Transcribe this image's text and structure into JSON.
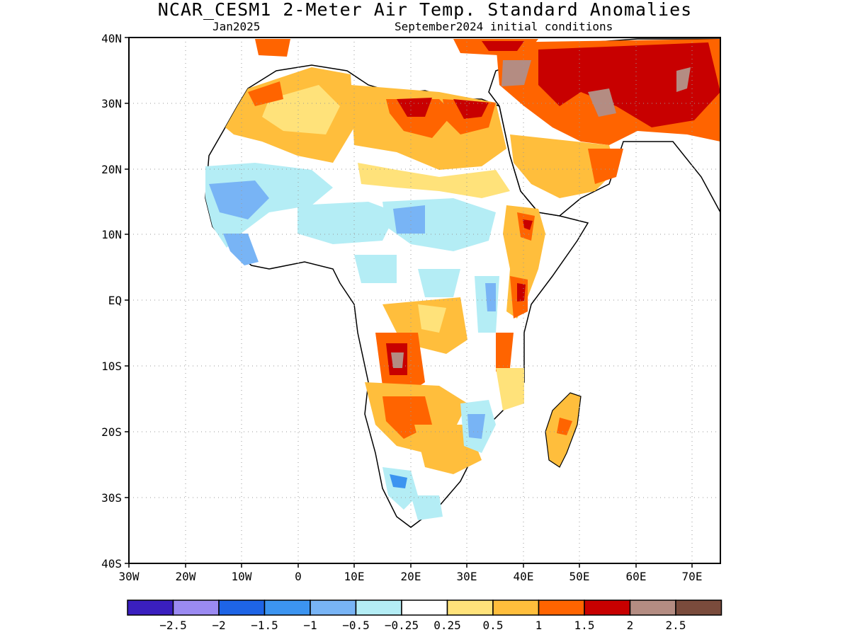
{
  "header": {
    "title": "NCAR_CESM1 2-Meter Air Temp. Standard Anomalies",
    "valid_month": "Jan2025",
    "init": "September2024 initial conditions"
  },
  "map": {
    "lat_ticks": [
      "40N",
      "30N",
      "20N",
      "10N",
      "EQ",
      "10S",
      "20S",
      "30S",
      "40S"
    ],
    "lon_ticks": [
      "30W",
      "20W",
      "10W",
      "0",
      "10E",
      "20E",
      "30E",
      "40E",
      "50E",
      "60E",
      "70E"
    ],
    "region": "Africa"
  },
  "legend": {
    "colors": [
      "#3a1fbf",
      "#9b8af2",
      "#1e64e6",
      "#3c94f0",
      "#78b4f5",
      "#b4edf5",
      "#ffffff",
      "#ffe27a",
      "#ffbe3c",
      "#ff6400",
      "#c80000",
      "#b48c82",
      "#7a4b3c"
    ],
    "labels": [
      "-2.5",
      "-2",
      "-1.5",
      "-1",
      "-0.5",
      "-0.25",
      "0.25",
      "0.5",
      "1",
      "1.5",
      "2",
      "2.5"
    ]
  },
  "chart_data": {
    "type": "heatmap",
    "title": "NCAR_CESM1 2-Meter Air Temp. Standard Anomalies",
    "subtitle_left": "Jan2025",
    "subtitle_right": "September2024 initial conditions",
    "x_range": [
      -30,
      75
    ],
    "y_range": [
      -40,
      40
    ],
    "color_scale_breaks": [
      -2.5,
      -2,
      -1.5,
      -1,
      -0.5,
      -0.25,
      0.25,
      0.5,
      1,
      1.5,
      2,
      2.5
    ]
  }
}
